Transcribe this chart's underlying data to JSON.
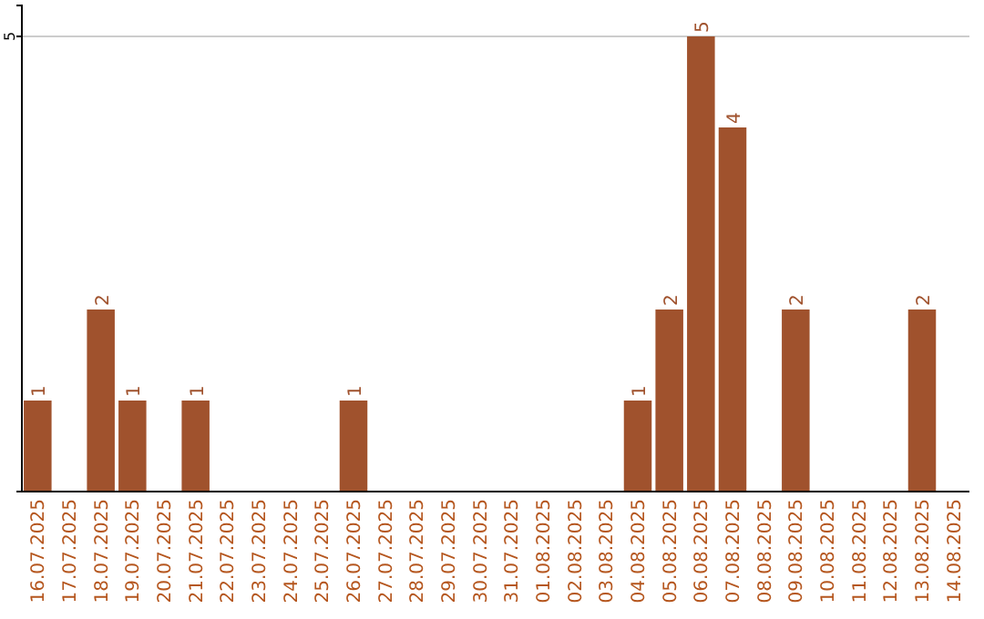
{
  "chart_data": {
    "type": "bar",
    "categories": [
      "16.07.2025",
      "17.07.2025",
      "18.07.2025",
      "19.07.2025",
      "20.07.2025",
      "21.07.2025",
      "22.07.2025",
      "23.07.2025",
      "24.07.2025",
      "25.07.2025",
      "26.07.2025",
      "27.07.2025",
      "28.07.2025",
      "29.07.2025",
      "30.07.2025",
      "31.07.2025",
      "01.08.2025",
      "02.08.2025",
      "03.08.2025",
      "04.08.2025",
      "05.08.2025",
      "06.08.2025",
      "07.08.2025",
      "08.08.2025",
      "09.08.2025",
      "10.08.2025",
      "11.08.2025",
      "12.08.2025",
      "13.08.2025",
      "14.08.2025"
    ],
    "values": [
      1,
      0,
      2,
      1,
      0,
      1,
      0,
      0,
      0,
      0,
      1,
      0,
      0,
      0,
      0,
      0,
      0,
      0,
      0,
      1,
      2,
      5,
      4,
      0,
      2,
      0,
      0,
      0,
      2,
      0
    ],
    "value_labels": [
      "1",
      null,
      "2",
      "1",
      null,
      "1",
      null,
      null,
      null,
      null,
      "1",
      null,
      null,
      null,
      null,
      null,
      null,
      null,
      null,
      "1",
      "2",
      "5",
      "4",
      null,
      "2",
      null,
      null,
      null,
      "2",
      null
    ],
    "color": "#a0522d",
    "ylim": [
      0,
      5.34
    ],
    "yticks": [
      5
    ],
    "grid": "y"
  }
}
